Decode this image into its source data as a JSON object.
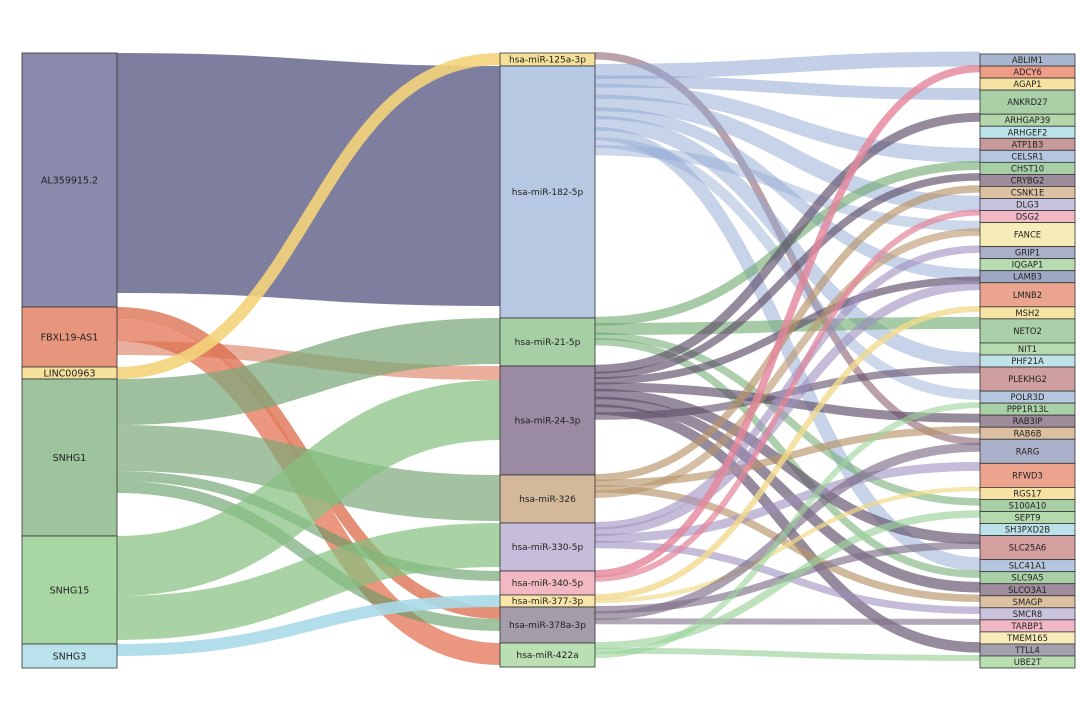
{
  "sankey": {
    "sources": [
      {
        "label": "AL359915.2",
        "color": "#8a8aac"
      },
      {
        "label": "FBXL19-AS1",
        "color": "#e8957e"
      },
      {
        "label": "LINC00963",
        "color": "#f6e19c"
      },
      {
        "label": "SNHG1",
        "color": "#9ec49e"
      },
      {
        "label": "SNHG15",
        "color": "#a9d7a3"
      },
      {
        "label": "SNHG3",
        "color": "#b9e2ec"
      }
    ],
    "mirnas": [
      {
        "label": "hsa-miR-125a-3p",
        "color": "#f4e09a"
      },
      {
        "label": "hsa-miR-182-5p",
        "color": "#b7c8e2"
      },
      {
        "label": "hsa-miR-21-5p",
        "color": "#a7cfa5"
      },
      {
        "label": "hsa-miR-24-3p",
        "color": "#9a8aa2"
      },
      {
        "label": "hsa-miR-326",
        "color": "#d3b89a"
      },
      {
        "label": "hsa-miR-330-5p",
        "color": "#c6bddb"
      },
      {
        "label": "hsa-miR-340-5p",
        "color": "#f2b9c5"
      },
      {
        "label": "hsa-miR-377-3p",
        "color": "#f7e6a8"
      },
      {
        "label": "hsa-miR-378a-3p",
        "color": "#a49ca8"
      },
      {
        "label": "hsa-miR-422a",
        "color": "#b9dfb3"
      }
    ],
    "targets": [
      {
        "label": "ABLIM1",
        "color": "#a8b6cf"
      },
      {
        "label": "ADCY6",
        "color": "#ef9d86"
      },
      {
        "label": "AGAP1",
        "color": "#f6e3a3"
      },
      {
        "label": "ANKRD27",
        "color": "#a8cfa6"
      },
      {
        "label": "ARHGAP39",
        "color": "#b3d7aa"
      },
      {
        "label": "ARHGEF2",
        "color": "#bde3ea"
      },
      {
        "label": "ATP1B3",
        "color": "#c79a9a"
      },
      {
        "label": "CELSR1",
        "color": "#b5c7e0"
      },
      {
        "label": "CHST10",
        "color": "#a6cfa8"
      },
      {
        "label": "CRYBG2",
        "color": "#9e8d9d"
      },
      {
        "label": "CSNK1E",
        "color": "#dcc1a3"
      },
      {
        "label": "DLG3",
        "color": "#c9c3dd"
      },
      {
        "label": "DSG2",
        "color": "#f1b9c6"
      },
      {
        "label": "FANCE",
        "color": "#f6ecb8"
      },
      {
        "label": "GRIP1",
        "color": "#aab0c8"
      },
      {
        "label": "IQGAP1",
        "color": "#b8dcb1"
      },
      {
        "label": "LAMB3",
        "color": "#9fa9c6"
      },
      {
        "label": "LMNB2",
        "color": "#eba58f"
      },
      {
        "label": "MSH2",
        "color": "#f6e2a2"
      },
      {
        "label": "NETO2",
        "color": "#a9d0a9"
      },
      {
        "label": "NIT1",
        "color": "#b6dbae"
      },
      {
        "label": "PHF21A",
        "color": "#c0e3ea"
      },
      {
        "label": "PLEKHG2",
        "color": "#cf9f9f"
      },
      {
        "label": "POLR3D",
        "color": "#b6c8e0"
      },
      {
        "label": "PPP1R13L",
        "color": "#a9d0a7"
      },
      {
        "label": "RAB3IP",
        "color": "#9e8c9b"
      },
      {
        "label": "RAB6B",
        "color": "#dcbfa1"
      },
      {
        "label": "RARG",
        "color": "#aab0c9"
      },
      {
        "label": "RFWD3",
        "color": "#eca38e"
      },
      {
        "label": "RGS17",
        "color": "#f6e3a4"
      },
      {
        "label": "S100A10",
        "color": "#a8cfa6"
      },
      {
        "label": "SEPT9",
        "color": "#b4d9ad"
      },
      {
        "label": "SH3PXD2B",
        "color": "#bde1e9"
      },
      {
        "label": "SLC25A6",
        "color": "#d39f9f"
      },
      {
        "label": "SLC41A1",
        "color": "#b5c7df"
      },
      {
        "label": "SLC9A5",
        "color": "#a9d0a7"
      },
      {
        "label": "SLCO3A1",
        "color": "#9f8c9c"
      },
      {
        "label": "SMAGP",
        "color": "#dcc0a2"
      },
      {
        "label": "SMCR8",
        "color": "#c9c3dd"
      },
      {
        "label": "TARBP1",
        "color": "#f1b7c4"
      },
      {
        "label": "TMEM165",
        "color": "#f6ebb9"
      },
      {
        "label": "TTLL4",
        "color": "#a4a0ae"
      },
      {
        "label": "UBE2T",
        "color": "#b9deb2"
      }
    ]
  }
}
